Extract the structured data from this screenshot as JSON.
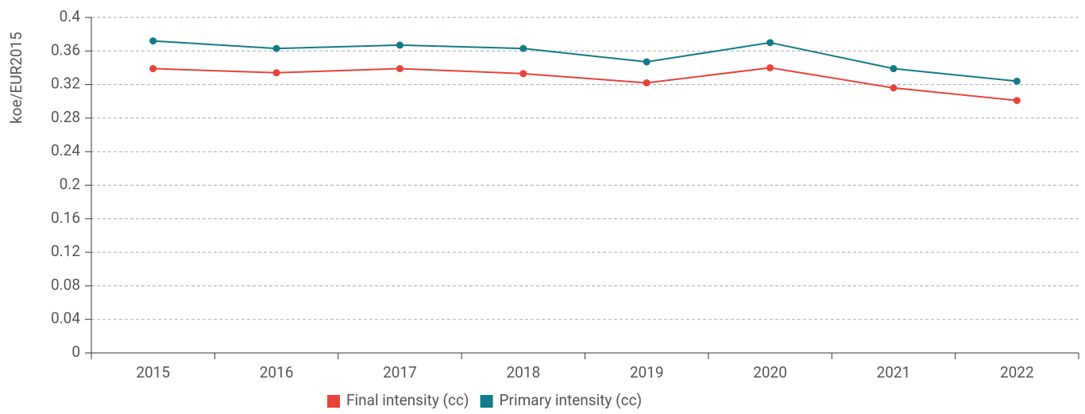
{
  "chart_data": {
    "type": "line",
    "y_label": "koe/EUR2015",
    "categories": [
      "2015",
      "2016",
      "2017",
      "2018",
      "2019",
      "2020",
      "2021",
      "2022"
    ],
    "series": [
      {
        "name": "Final intensity (cc)",
        "color": "#e8423a",
        "values": [
          0.339,
          0.334,
          0.339,
          0.333,
          0.322,
          0.34,
          0.316,
          0.301
        ]
      },
      {
        "name": "Primary intensity (cc)",
        "color": "#127a8a",
        "values": [
          0.372,
          0.363,
          0.367,
          0.363,
          0.347,
          0.37,
          0.339,
          0.324
        ]
      }
    ],
    "ylim": [
      0,
      0.4
    ],
    "yticks": [
      0,
      0.04,
      0.08,
      0.12,
      0.16,
      0.2,
      0.24,
      0.28,
      0.32,
      0.36,
      0.4
    ],
    "grid": true,
    "legend": "bottom"
  }
}
